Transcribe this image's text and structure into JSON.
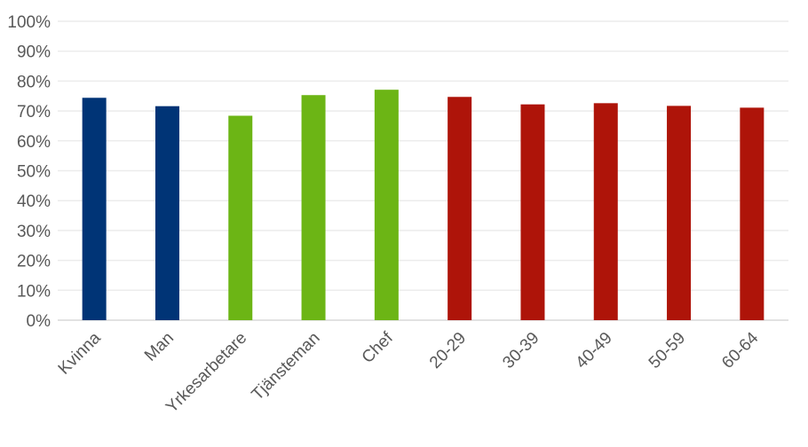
{
  "chart_data": {
    "type": "bar",
    "title": "",
    "xlabel": "",
    "ylabel": "",
    "categories": [
      "Kvinna",
      "Man",
      "Yrkesarbetare",
      "Tjänsteman",
      "Chef",
      "20-29",
      "30-39",
      "40-49",
      "50-59",
      "60-64"
    ],
    "values": [
      74.4,
      71.6,
      68.4,
      75.3,
      77.1,
      74.7,
      72.2,
      72.6,
      71.7,
      71.1
    ],
    "colors": [
      "#003476",
      "#003476",
      "#6cb515",
      "#6cb515",
      "#6cb515",
      "#ae1409",
      "#ae1409",
      "#ae1409",
      "#ae1409",
      "#ae1409"
    ],
    "ylim": [
      0,
      100
    ],
    "yticks": [
      "0%",
      "10%",
      "20%",
      "30%",
      "40%",
      "50%",
      "60%",
      "70%",
      "80%",
      "90%",
      "100%"
    ],
    "grid": true,
    "legend": "none"
  }
}
